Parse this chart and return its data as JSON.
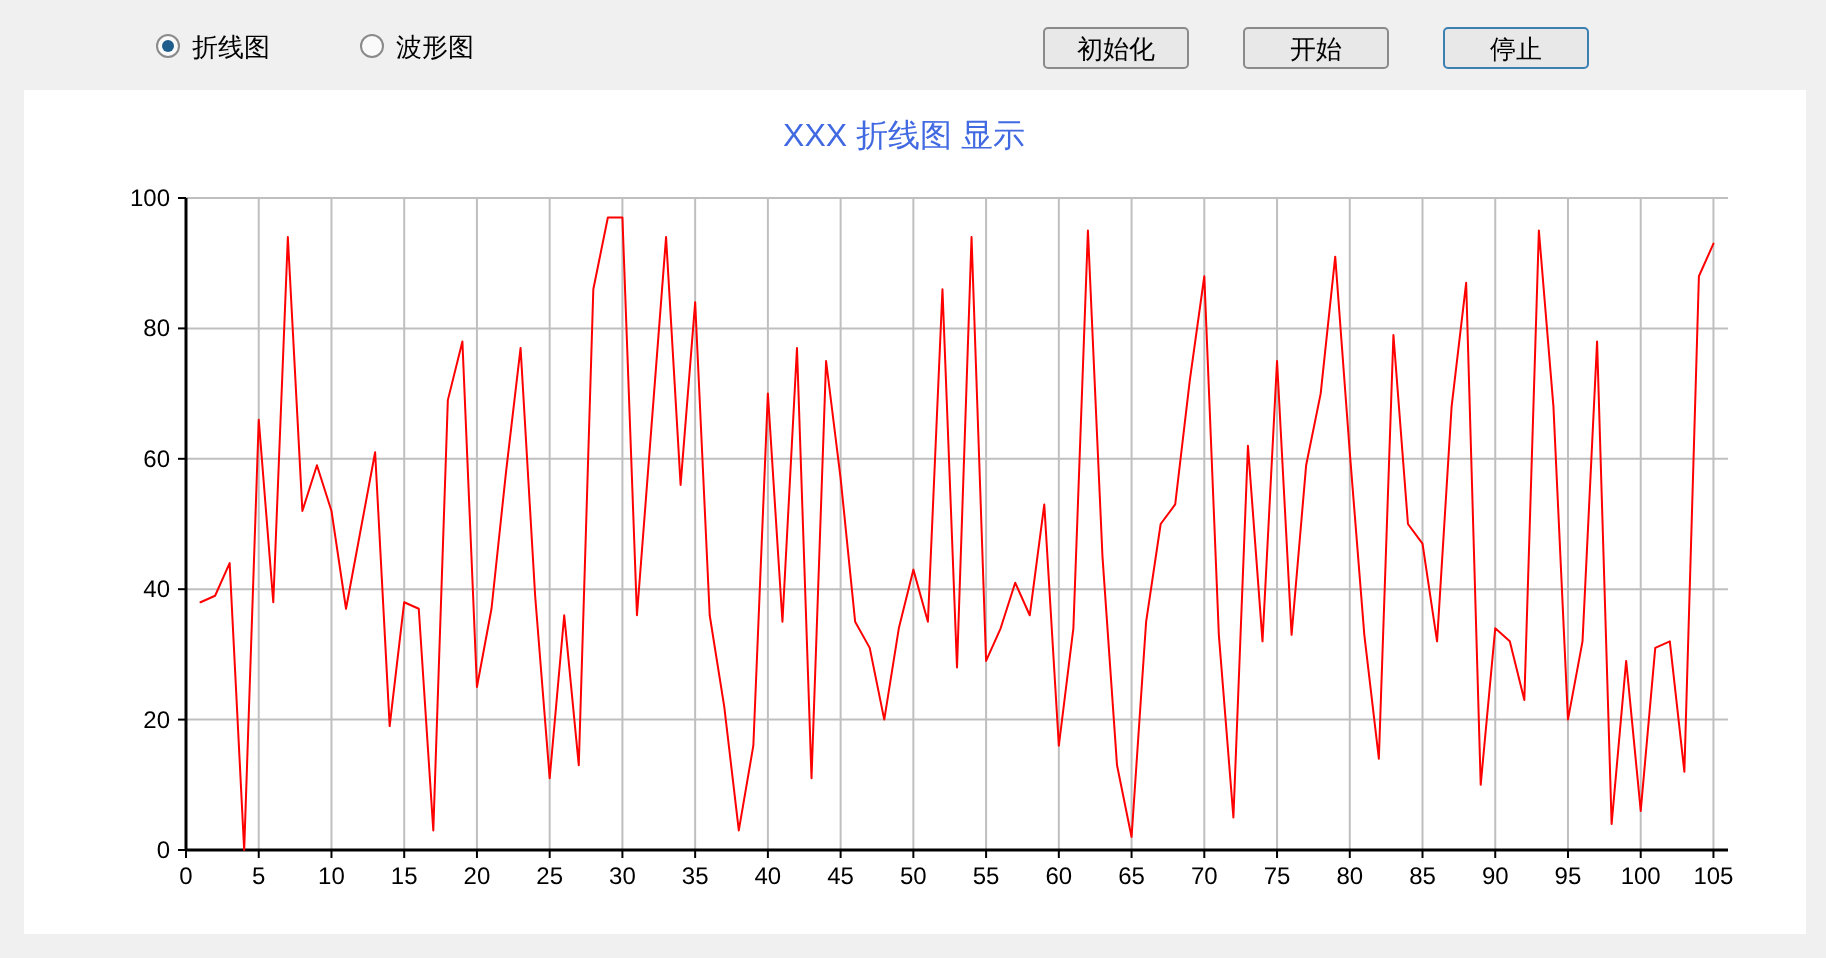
{
  "chart_data": {
    "type": "line",
    "title": "XXX 折线图 显示",
    "x": [
      1,
      2,
      3,
      4,
      5,
      6,
      7,
      8,
      9,
      10,
      11,
      12,
      13,
      14,
      15,
      16,
      17,
      18,
      19,
      20,
      21,
      22,
      23,
      24,
      25,
      26,
      27,
      28,
      29,
      30,
      31,
      32,
      33,
      34,
      35,
      36,
      37,
      38,
      39,
      40,
      41,
      42,
      43,
      44,
      45,
      46,
      47,
      48,
      49,
      50,
      51,
      52,
      53,
      54,
      55,
      56,
      57,
      58,
      59,
      60,
      61,
      62,
      63,
      64,
      65,
      66,
      67,
      68,
      69,
      70,
      71,
      72,
      73,
      74,
      75,
      76,
      77,
      78,
      79,
      80,
      81,
      82,
      83,
      84,
      85,
      86,
      87,
      88,
      89,
      90,
      91,
      92,
      93,
      94,
      95,
      96,
      97,
      98,
      99,
      100,
      101,
      102,
      103,
      104,
      105
    ],
    "series": [
      {
        "color": "#ff0000",
        "values": [
          38,
          39,
          44,
          0,
          66,
          38,
          94,
          52,
          59,
          52,
          37,
          49,
          61,
          19,
          38,
          37,
          3,
          69,
          78,
          25,
          37,
          58,
          77,
          39,
          11,
          36,
          13,
          86,
          97,
          97,
          36,
          65,
          94,
          56,
          84,
          36,
          22,
          3,
          16,
          70,
          35,
          77,
          11,
          75,
          57,
          35,
          31,
          20,
          34,
          43,
          35,
          86,
          28,
          94,
          29,
          34,
          41,
          36,
          53,
          16,
          34,
          95,
          45,
          13,
          2,
          35,
          50,
          53,
          72,
          88,
          33,
          5,
          62,
          32,
          75,
          33,
          59,
          70,
          91,
          61,
          33,
          14,
          79,
          50,
          47,
          32,
          68,
          87,
          10,
          34,
          32,
          23,
          95,
          68,
          20,
          32,
          78,
          4,
          29,
          6,
          31,
          32,
          12,
          88,
          93
        ]
      }
    ],
    "xlim": [
      0,
      106
    ],
    "ylim": [
      0,
      100
    ],
    "xticks": [
      0,
      5,
      10,
      15,
      20,
      25,
      30,
      35,
      40,
      45,
      50,
      55,
      60,
      65,
      70,
      75,
      80,
      85,
      90,
      95,
      100,
      105
    ],
    "yticks": [
      0,
      20,
      40,
      60,
      80,
      100
    ],
    "grid": true,
    "marker": "none",
    "line_style": "solid",
    "annotations": [
      "折线图",
      "波形图",
      "初始化",
      "开始",
      "停止"
    ]
  }
}
